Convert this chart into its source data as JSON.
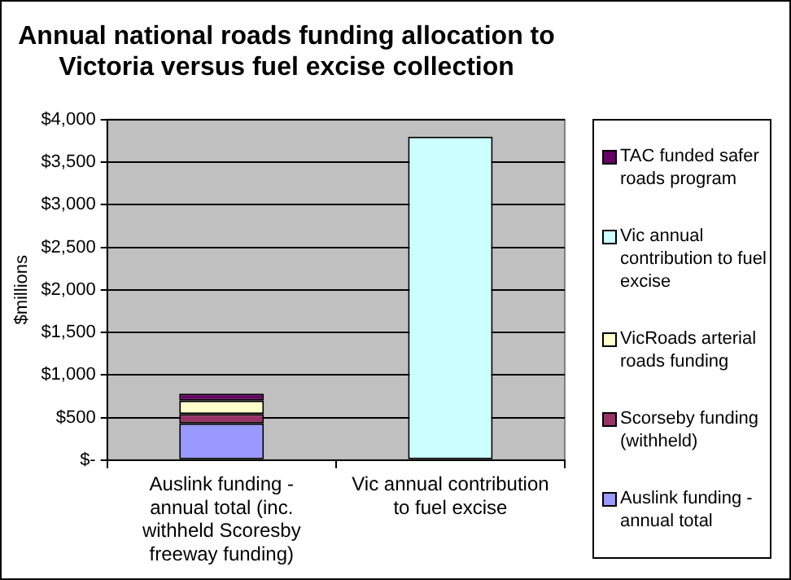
{
  "chart_data": {
    "type": "bar",
    "title": "Annual national roads funding allocation to Victoria versus fuel excise collection",
    "ylabel": "$millions",
    "categories": [
      "Auslink funding - annual total (inc. withheld Scoresby freeway funding)",
      "Vic annual contribution to fuel excise"
    ],
    "stacked": true,
    "series": [
      {
        "name": "Auslink funding - annual total",
        "color": "#9999ff",
        "values": [
          430,
          null
        ]
      },
      {
        "name": "Scorseby funding (withheld)",
        "color": "#993366",
        "values": [
          110,
          null
        ]
      },
      {
        "name": "VicRoads arterial roads funding",
        "color": "#ffffcc",
        "values": [
          160,
          null
        ]
      },
      {
        "name": "Vic annual contribution to fuel excise",
        "color": "#ccffff",
        "values": [
          null,
          3800
        ]
      },
      {
        "name": "TAC funded safer roads program",
        "color": "#660066",
        "values": [
          80,
          null
        ]
      }
    ],
    "ylim": [
      0,
      4000
    ],
    "yticks": [
      {
        "value": 0,
        "label": "$-"
      },
      {
        "value": 500,
        "label": "$500"
      },
      {
        "value": 1000,
        "label": "$1,000"
      },
      {
        "value": 1500,
        "label": "$1,500"
      },
      {
        "value": 2000,
        "label": "$2,000"
      },
      {
        "value": 2500,
        "label": "$2,500"
      },
      {
        "value": 3000,
        "label": "$3,000"
      },
      {
        "value": 3500,
        "label": "$3,500"
      },
      {
        "value": 4000,
        "label": "$4,000"
      }
    ],
    "grid": "y",
    "legend": "right"
  }
}
